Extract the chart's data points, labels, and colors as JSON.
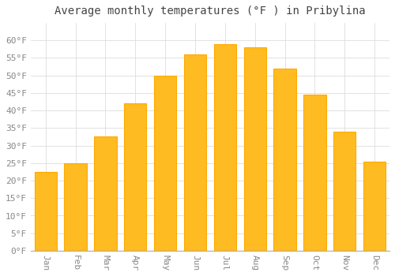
{
  "title": "Average monthly temperatures (°F ) in Pribylina",
  "months": [
    "Jan",
    "Feb",
    "Mar",
    "Apr",
    "May",
    "Jun",
    "Jul",
    "Aug",
    "Sep",
    "Oct",
    "Nov",
    "Dec"
  ],
  "values": [
    22.5,
    25.0,
    32.5,
    42.0,
    50.0,
    56.0,
    59.0,
    58.0,
    52.0,
    44.5,
    34.0,
    25.5
  ],
  "bar_color": "#FFBB22",
  "bar_edge_color": "#FFAA00",
  "background_color": "#FFFFFF",
  "plot_bg_color": "#FFFFFF",
  "grid_color": "#DDDDDD",
  "ylim": [
    0,
    65
  ],
  "yticks": [
    0,
    5,
    10,
    15,
    20,
    25,
    30,
    35,
    40,
    45,
    50,
    55,
    60
  ],
  "title_fontsize": 10,
  "tick_fontsize": 8,
  "title_color": "#444444",
  "tick_color": "#888888",
  "spine_color": "#AAAAAA"
}
